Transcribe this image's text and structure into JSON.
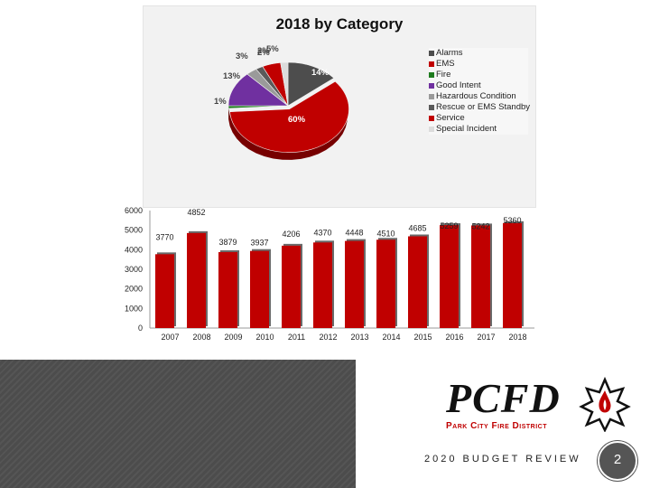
{
  "chart_data": [
    {
      "type": "pie",
      "title": "2018 by Category",
      "categories": [
        "Alarms",
        "EMS",
        "Fire",
        "Good Intent",
        "Hazardous Condition",
        "Rescue or EMS Standby",
        "Service",
        "Special Incident"
      ],
      "values": [
        14,
        60,
        1,
        13,
        3,
        2,
        5,
        2
      ],
      "labels": [
        "14%",
        "60%",
        "1%",
        "13%",
        "3%",
        "2%",
        "5%",
        "2%"
      ],
      "colors": [
        "#4d4d4d",
        "#c00000",
        "#1e7b1e",
        "#7030a0",
        "#9a9a9a",
        "#5a5a5a",
        "#c00000",
        "#dcdcdc"
      ],
      "legend_position": "right"
    },
    {
      "type": "bar",
      "categories": [
        "2007",
        "2008",
        "2009",
        "2010",
        "2011",
        "2012",
        "2013",
        "2014",
        "2015",
        "2016",
        "2017",
        "2018"
      ],
      "values": [
        3770,
        4852,
        3879,
        3937,
        4206,
        4370,
        4448,
        4510,
        4685,
        5259,
        5242,
        5360
      ],
      "data_labels": [
        "3770",
        "4852",
        "3879",
        "3937",
        "4206",
        "4370",
        "4448",
        "4510",
        "4685",
        "5259",
        "5242",
        "5360"
      ],
      "ylim": [
        0,
        6000
      ],
      "yticks": [
        "0",
        "1000",
        "2000",
        "3000",
        "4000",
        "5000",
        "6000"
      ],
      "color": "#c00000",
      "grid": false
    }
  ],
  "footer": {
    "logo_text": "PCFD",
    "logo_subtitle": "Park City Fire District",
    "review_label": "2020 BUDGET REVIEW",
    "page_number": "2"
  }
}
